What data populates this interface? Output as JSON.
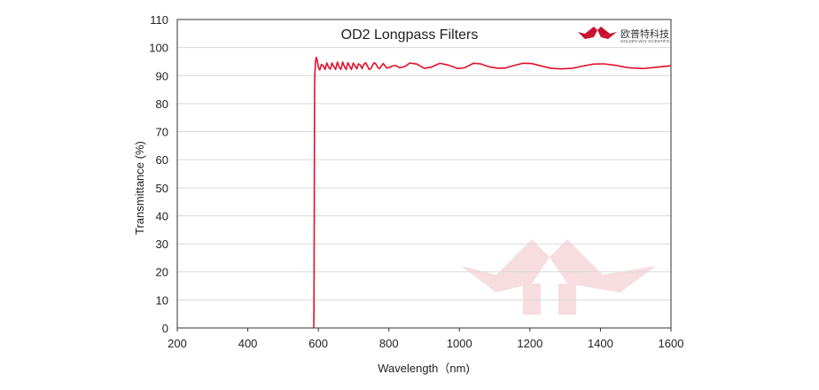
{
  "brand": {
    "name_cn": "欧普特科技",
    "name_en": "GOLDEN WAY SCIENTIFIC",
    "color": "#c8102e"
  },
  "chart_data": {
    "type": "line",
    "title": "OD2  Longpass Filters",
    "xlabel": "Wavelength（nm)",
    "ylabel": "Transmittance (%)",
    "xlim": [
      200,
      1600
    ],
    "ylim": [
      0,
      110
    ],
    "x_ticks": [
      200,
      400,
      600,
      800,
      1000,
      1200,
      1400,
      1600
    ],
    "y_ticks": [
      0,
      10,
      20,
      30,
      40,
      50,
      60,
      70,
      80,
      90,
      100,
      110
    ],
    "grid": "horizontal",
    "line_color": "#e0102a",
    "series": [
      {
        "x": [
          587,
          587.5,
          588,
          588.5,
          589,
          589.5,
          590,
          590.5,
          591,
          592,
          594,
          597,
          600,
          604,
          609,
          614,
          619,
          624,
          629,
          634,
          639,
          644,
          649,
          654,
          659,
          664,
          669,
          674,
          679,
          684,
          689,
          694,
          699,
          704,
          709,
          714,
          719,
          724,
          729,
          734,
          739,
          744,
          749,
          754,
          759,
          764,
          769,
          774,
          779,
          784,
          789,
          794,
          800,
          810,
          820,
          830,
          845,
          860,
          880,
          900,
          920,
          945,
          970,
          995,
          1015,
          1040,
          1060,
          1085,
          1110,
          1130,
          1155,
          1180,
          1205,
          1230,
          1260,
          1290,
          1320,
          1350,
          1380,
          1410,
          1440,
          1480,
          1520,
          1560,
          1600
        ],
        "y": [
          0,
          5,
          20,
          45,
          70,
          85,
          90,
          91.5,
          92.5,
          95,
          96.5,
          95.5,
          93,
          92,
          94,
          93.5,
          92.2,
          94.5,
          93,
          92.3,
          94.5,
          93.2,
          92.2,
          94.8,
          93,
          92.2,
          94.8,
          93.2,
          92.2,
          94.6,
          93.3,
          92.2,
          94.5,
          93.5,
          92.4,
          94.2,
          93.8,
          92.5,
          94,
          94.6,
          93.5,
          92.2,
          92.5,
          93.8,
          94.6,
          94,
          92.8,
          92.5,
          93.5,
          94.3,
          93.5,
          92.7,
          92.8,
          93.4,
          93.6,
          92.8,
          93.2,
          94.5,
          94.1,
          92.6,
          93,
          94.4,
          93.7,
          92.5,
          92.8,
          94.4,
          94.2,
          93.1,
          92.6,
          92.7,
          93.6,
          94.4,
          94.3,
          93.5,
          92.6,
          92.4,
          92.6,
          93.4,
          94.1,
          94.2,
          93.7,
          92.8,
          92.5,
          93,
          93.5
        ]
      }
    ]
  }
}
